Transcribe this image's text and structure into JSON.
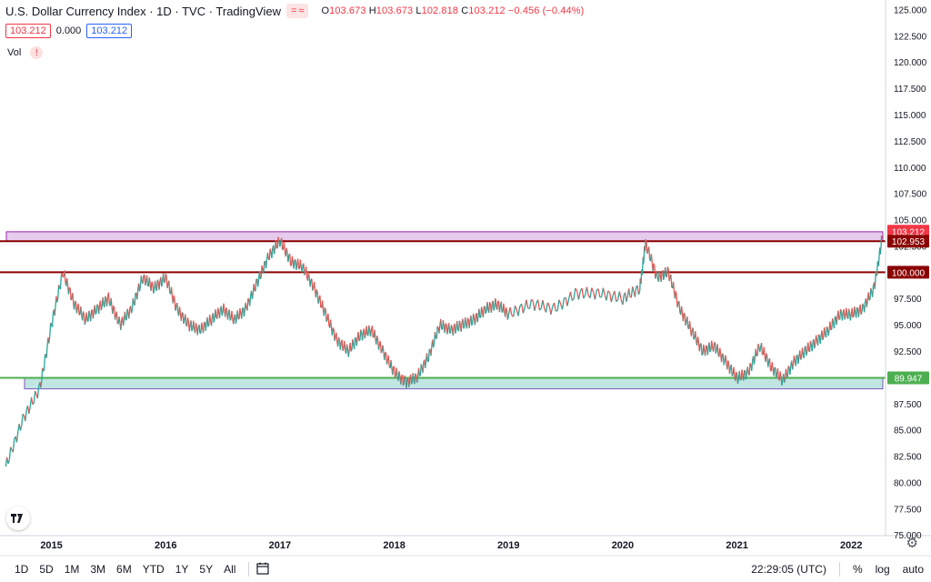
{
  "legend": {
    "title": "U.S. Dollar Currency Index · 1D · TVC · TradingView",
    "pill_a": "=",
    "pill_b": "≈",
    "open_label": "O",
    "open": "103.673",
    "high_label": "H",
    "high": "103.673",
    "low_label": "L",
    "low": "102.818",
    "close_label": "C",
    "close": "103.212",
    "change": "−0.456 (−0.44%)"
  },
  "spread": {
    "bid": "103.212",
    "mid": "0.000",
    "ask": "103.212"
  },
  "volume": {
    "label": "Vol",
    "warning": "!"
  },
  "bottom_bar": {
    "timeframes": [
      "1D",
      "5D",
      "1M",
      "3M",
      "6M",
      "YTD",
      "1Y",
      "5Y",
      "All"
    ],
    "clock": "22:29:05 (UTC)",
    "percent": "%",
    "log": "log",
    "auto": "auto"
  },
  "colors": {
    "up": "#26a69a",
    "down": "#ef5350",
    "resistance_zone": "#e1bee7",
    "support_zone": "#b2dfdb",
    "level_line": "#8b0000",
    "support_line": "#4caf50"
  },
  "chart_data": {
    "type": "line",
    "title": "U.S. Dollar Currency Index",
    "x_ticks": [
      "2015",
      "2016",
      "2017",
      "2018",
      "2019",
      "2020",
      "2021",
      "2022"
    ],
    "y_ticks": [
      "125.000",
      "122.500",
      "120.000",
      "117.500",
      "115.000",
      "112.500",
      "110.000",
      "107.500",
      "105.000",
      "102.500",
      "100.000",
      "97.500",
      "95.000",
      "92.500",
      "90.000",
      "87.500",
      "85.000",
      "82.500",
      "80.000",
      "77.500",
      "75.000"
    ],
    "ylim": [
      74.5,
      125.3
    ],
    "series": [
      {
        "x": [
          2014.6,
          2014.75,
          2014.9,
          2015.0,
          2015.1,
          2015.2,
          2015.3,
          2015.4,
          2015.5,
          2015.6,
          2015.7,
          2015.8,
          2015.9,
          2016.0,
          2016.1,
          2016.2,
          2016.3,
          2016.4,
          2016.5,
          2016.6,
          2016.7,
          2016.8,
          2016.9,
          2017.0,
          2017.1,
          2017.2,
          2017.3,
          2017.4,
          2017.5,
          2017.6,
          2017.7,
          2017.8,
          2017.9,
          2018.0,
          2018.1,
          2018.2,
          2018.3,
          2018.4,
          2018.5,
          2018.6,
          2018.7,
          2018.8,
          2018.9,
          2019.0,
          2019.2,
          2019.4,
          2019.6,
          2019.8,
          2020.0,
          2020.15,
          2020.2,
          2020.3,
          2020.4,
          2020.5,
          2020.6,
          2020.7,
          2020.8,
          2020.9,
          2021.0,
          2021.1,
          2021.2,
          2021.3,
          2021.4,
          2021.5,
          2021.6,
          2021.7,
          2021.8,
          2021.9,
          2022.0,
          2022.1,
          2022.2,
          2022.27
        ],
        "values": [
          81.5,
          86.0,
          89.0,
          95.0,
          100.0,
          97.0,
          95.5,
          96.5,
          97.5,
          95.0,
          96.5,
          99.5,
          98.5,
          99.5,
          96.5,
          95.0,
          94.5,
          95.5,
          96.5,
          95.5,
          96.5,
          99.0,
          101.5,
          103.0,
          101.0,
          100.5,
          98.5,
          96.0,
          93.5,
          92.5,
          94.0,
          94.5,
          92.5,
          90.5,
          89.5,
          90.0,
          92.0,
          95.0,
          94.5,
          95.0,
          95.5,
          96.5,
          97.0,
          96.0,
          97.0,
          96.5,
          98.0,
          98.0,
          97.5,
          98.5,
          102.8,
          99.5,
          100.0,
          96.5,
          94.5,
          92.5,
          93.0,
          91.5,
          89.9,
          90.5,
          93.0,
          91.0,
          89.7,
          91.5,
          92.5,
          93.5,
          94.5,
          96.0,
          96.0,
          96.5,
          98.5,
          103.2
        ]
      }
    ],
    "levels": [
      {
        "name": "resistance-zone",
        "from": 102.95,
        "to": 103.85
      },
      {
        "name": "102.953",
        "value": 102.953
      },
      {
        "name": "100.000",
        "value": 100.0
      },
      {
        "name": "89.947",
        "value": 89.947
      },
      {
        "name": "support-zone",
        "from": 88.9,
        "to": 89.95
      }
    ],
    "last_price": "103.212",
    "level_labels": [
      "102.953",
      "100.000",
      "89.947"
    ],
    "grid": false
  }
}
